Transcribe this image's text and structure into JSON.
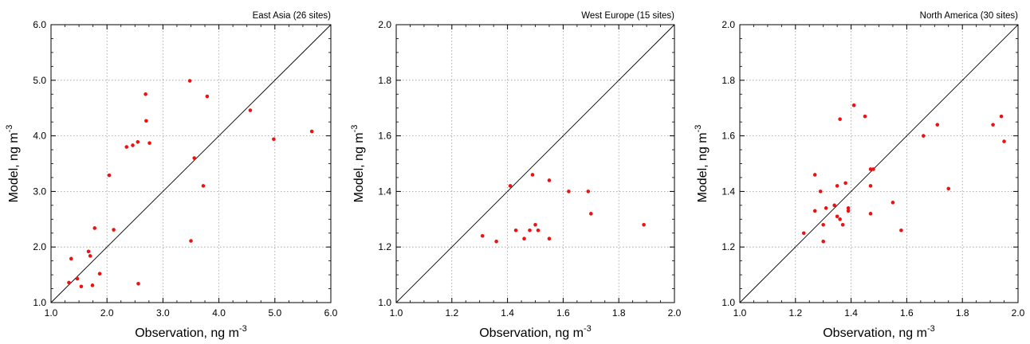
{
  "chart_data": [
    {
      "type": "scatter",
      "title": "East Asia (26 sites)",
      "xlabel": "Observation, ng m",
      "ylabel": "Model, ng m",
      "unit_superscript": "-3",
      "xlim": [
        1.0,
        6.0
      ],
      "ylim": [
        1.0,
        6.0
      ],
      "ticks": [
        1.0,
        2.0,
        3.0,
        4.0,
        5.0,
        6.0
      ],
      "tick_labels": [
        "1.0",
        "2.0",
        "3.0",
        "4.0",
        "5.0",
        "6.0"
      ],
      "grid": true,
      "one_to_one_line": true,
      "marker_color": "#ee1111",
      "points": [
        {
          "x": 1.32,
          "y": 1.36
        },
        {
          "x": 1.36,
          "y": 1.79
        },
        {
          "x": 1.47,
          "y": 1.43
        },
        {
          "x": 1.54,
          "y": 1.29
        },
        {
          "x": 1.67,
          "y": 1.92
        },
        {
          "x": 1.7,
          "y": 1.84
        },
        {
          "x": 1.74,
          "y": 1.31
        },
        {
          "x": 1.78,
          "y": 2.34
        },
        {
          "x": 1.87,
          "y": 1.52
        },
        {
          "x": 2.04,
          "y": 3.29
        },
        {
          "x": 2.12,
          "y": 2.31
        },
        {
          "x": 2.35,
          "y": 3.8
        },
        {
          "x": 2.46,
          "y": 3.83
        },
        {
          "x": 2.55,
          "y": 3.89
        },
        {
          "x": 2.56,
          "y": 1.34
        },
        {
          "x": 2.69,
          "y": 4.75
        },
        {
          "x": 2.7,
          "y": 4.27
        },
        {
          "x": 2.76,
          "y": 3.87
        },
        {
          "x": 3.48,
          "y": 4.99
        },
        {
          "x": 3.5,
          "y": 2.11
        },
        {
          "x": 3.56,
          "y": 3.6
        },
        {
          "x": 3.72,
          "y": 3.1
        },
        {
          "x": 3.79,
          "y": 4.71
        },
        {
          "x": 4.56,
          "y": 4.46
        },
        {
          "x": 4.98,
          "y": 3.94
        },
        {
          "x": 5.66,
          "y": 4.08
        }
      ]
    },
    {
      "type": "scatter",
      "title": "West Europe (15 sites)",
      "xlabel": "Observation, ng m",
      "ylabel": "Model, ng m",
      "unit_superscript": "-3",
      "xlim": [
        1.0,
        2.0
      ],
      "ylim": [
        1.0,
        2.0
      ],
      "ticks": [
        1.0,
        1.2,
        1.4,
        1.6,
        1.8,
        2.0
      ],
      "tick_labels": [
        "1.0",
        "1.2",
        "1.4",
        "1.6",
        "1.8",
        "2.0"
      ],
      "grid": true,
      "one_to_one_line": true,
      "marker_color": "#ee1111",
      "points": [
        {
          "x": 1.31,
          "y": 1.24
        },
        {
          "x": 1.36,
          "y": 1.22
        },
        {
          "x": 1.41,
          "y": 1.42
        },
        {
          "x": 1.43,
          "y": 1.26
        },
        {
          "x": 1.46,
          "y": 1.23
        },
        {
          "x": 1.48,
          "y": 1.26
        },
        {
          "x": 1.49,
          "y": 1.46
        },
        {
          "x": 1.5,
          "y": 1.28
        },
        {
          "x": 1.51,
          "y": 1.26
        },
        {
          "x": 1.55,
          "y": 1.23
        },
        {
          "x": 1.55,
          "y": 1.44
        },
        {
          "x": 1.62,
          "y": 1.4
        },
        {
          "x": 1.69,
          "y": 1.4
        },
        {
          "x": 1.7,
          "y": 1.32
        },
        {
          "x": 1.89,
          "y": 1.28
        }
      ]
    },
    {
      "type": "scatter",
      "title": "North America (30 sites)",
      "xlabel": "Observation, ng m",
      "ylabel": "Model, ng m",
      "unit_superscript": "-3",
      "xlim": [
        1.0,
        2.0
      ],
      "ylim": [
        1.0,
        2.0
      ],
      "ticks": [
        1.0,
        1.2,
        1.4,
        1.6,
        1.8,
        2.0
      ],
      "tick_labels": [
        "1.0",
        "1.2",
        "1.4",
        "1.6",
        "1.8",
        "2.0"
      ],
      "grid": true,
      "one_to_one_line": true,
      "marker_color": "#ee1111",
      "points": [
        {
          "x": 1.23,
          "y": 1.25
        },
        {
          "x": 1.27,
          "y": 1.46
        },
        {
          "x": 1.27,
          "y": 1.33
        },
        {
          "x": 1.29,
          "y": 1.4
        },
        {
          "x": 1.3,
          "y": 1.22
        },
        {
          "x": 1.3,
          "y": 1.28
        },
        {
          "x": 1.31,
          "y": 1.34
        },
        {
          "x": 1.34,
          "y": 1.35
        },
        {
          "x": 1.35,
          "y": 1.31
        },
        {
          "x": 1.35,
          "y": 1.42
        },
        {
          "x": 1.36,
          "y": 1.66
        },
        {
          "x": 1.36,
          "y": 1.3
        },
        {
          "x": 1.37,
          "y": 1.28
        },
        {
          "x": 1.38,
          "y": 1.43
        },
        {
          "x": 1.39,
          "y": 1.34
        },
        {
          "x": 1.39,
          "y": 1.33
        },
        {
          "x": 1.41,
          "y": 1.71
        },
        {
          "x": 1.45,
          "y": 1.67
        },
        {
          "x": 1.47,
          "y": 1.48
        },
        {
          "x": 1.47,
          "y": 1.42
        },
        {
          "x": 1.47,
          "y": 1.32
        },
        {
          "x": 1.48,
          "y": 1.48
        },
        {
          "x": 1.55,
          "y": 1.36
        },
        {
          "x": 1.58,
          "y": 1.26
        },
        {
          "x": 1.66,
          "y": 1.6
        },
        {
          "x": 1.71,
          "y": 1.64
        },
        {
          "x": 1.75,
          "y": 1.41
        },
        {
          "x": 1.91,
          "y": 1.64
        },
        {
          "x": 1.94,
          "y": 1.67
        },
        {
          "x": 1.95,
          "y": 1.58
        }
      ]
    }
  ]
}
